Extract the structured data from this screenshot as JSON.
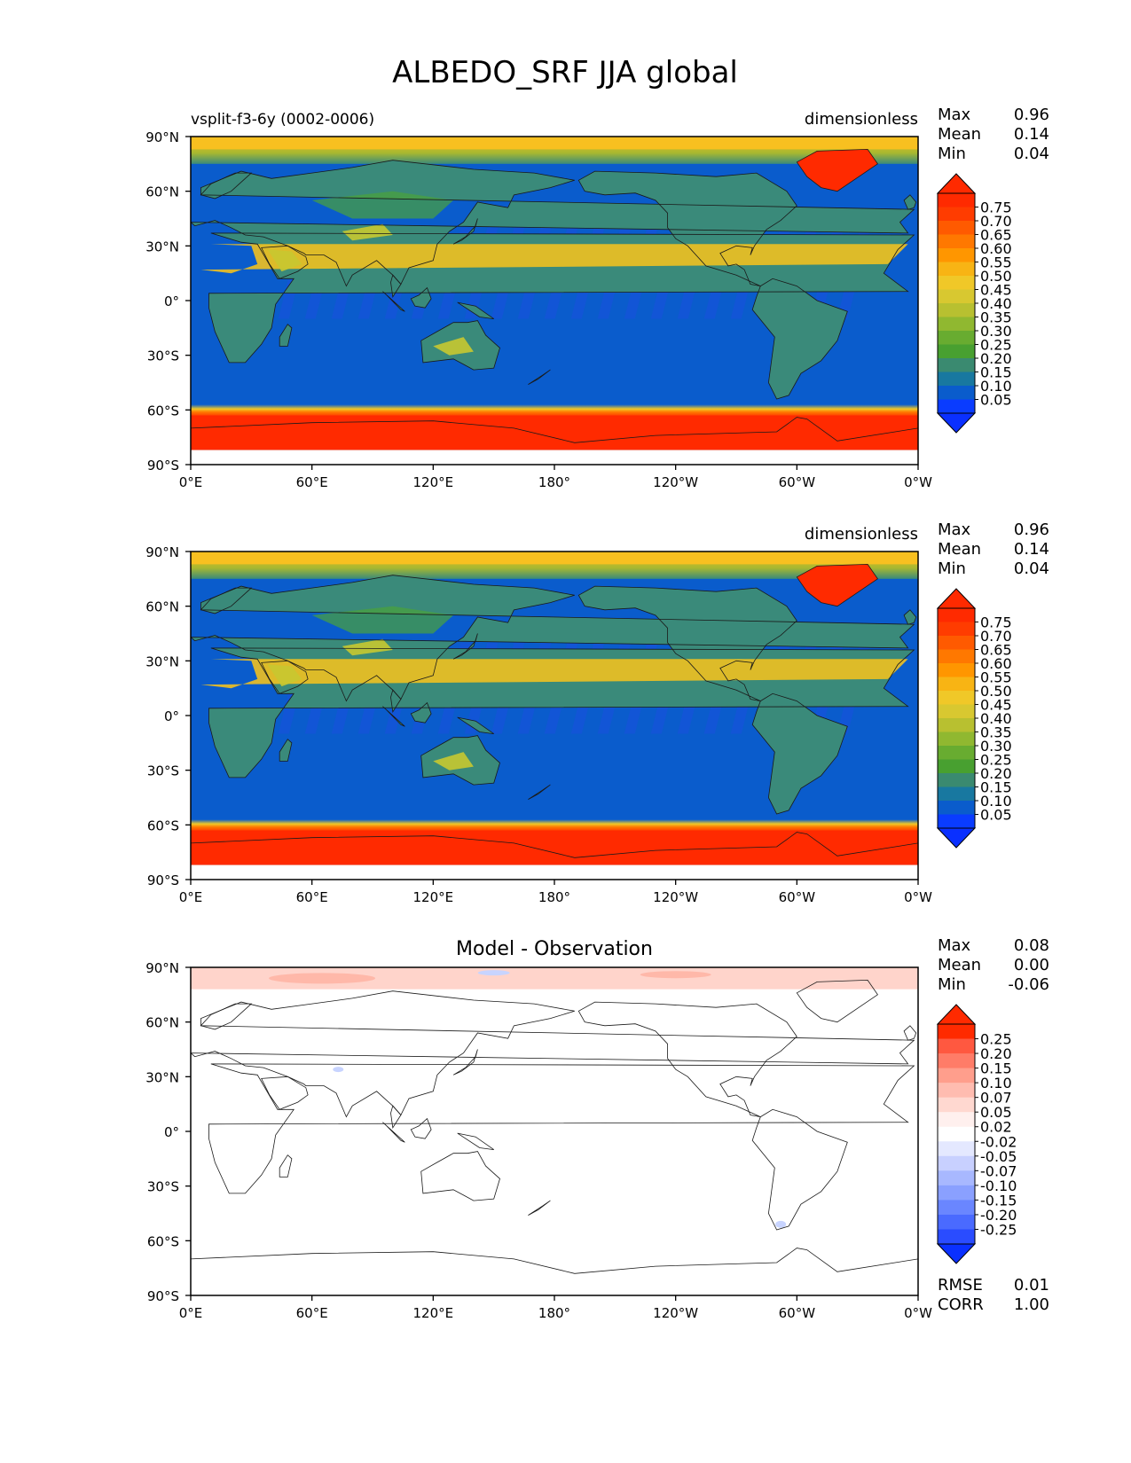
{
  "title": "ALBEDO_SRF JJA global",
  "lat_ticks": [
    "90°N",
    "60°N",
    "30°N",
    "0°",
    "30°S",
    "60°S",
    "90°S"
  ],
  "lon_ticks": [
    "0°E",
    "60°E",
    "120°E",
    "180°",
    "120°W",
    "60°W",
    "0°W"
  ],
  "colors": {
    "ocean": "#0a5ccc",
    "land_low": "#3a8a7a",
    "land_mid": "#4aa23a",
    "desert": "#c8c830",
    "desert_bright": "#f0c020",
    "arctic": "#f8c020",
    "ice": "#ff2a00",
    "diff_pos": "#ffb0a0",
    "diff_neg": "#c8d4ff"
  },
  "panels": [
    {
      "id": "test",
      "left_title": "vsplit-f3-6y (0002-0006)",
      "center_title": "",
      "right_title": "dimensionless",
      "stats": [
        {
          "label": "Max",
          "value": "0.96"
        },
        {
          "label": "Mean",
          "value": "0.14"
        },
        {
          "label": "Min",
          "value": "0.04"
        }
      ],
      "colorbar": {
        "labels": [
          "0.75",
          "0.70",
          "0.65",
          "0.60",
          "0.55",
          "0.50",
          "0.45",
          "0.40",
          "0.35",
          "0.30",
          "0.25",
          "0.20",
          "0.15",
          "0.10",
          "0.05"
        ],
        "colors": [
          "#ff2a00",
          "#ff3c00",
          "#ff5a00",
          "#ff7800",
          "#ff9600",
          "#f8b414",
          "#f0c828",
          "#d8c830",
          "#b8c030",
          "#90b830",
          "#68ac30",
          "#48a030",
          "#3a8a70",
          "#1878a0",
          "#0a5ccc",
          "#0a3cff"
        ],
        "top_color": "#ff2a00",
        "bottom_color": "#0a30ff"
      },
      "footer_stats": []
    },
    {
      "id": "reference",
      "left_title": "",
      "center_title": "",
      "right_title": "dimensionless",
      "stats": [
        {
          "label": "Max",
          "value": "0.96"
        },
        {
          "label": "Mean",
          "value": "0.14"
        },
        {
          "label": "Min",
          "value": "0.04"
        }
      ],
      "colorbar": {
        "labels": [
          "0.75",
          "0.70",
          "0.65",
          "0.60",
          "0.55",
          "0.50",
          "0.45",
          "0.40",
          "0.35",
          "0.30",
          "0.25",
          "0.20",
          "0.15",
          "0.10",
          "0.05"
        ],
        "colors": [
          "#ff2a00",
          "#ff3c00",
          "#ff5a00",
          "#ff7800",
          "#ff9600",
          "#f8b414",
          "#f0c828",
          "#d8c830",
          "#b8c030",
          "#90b830",
          "#68ac30",
          "#48a030",
          "#3a8a70",
          "#1878a0",
          "#0a5ccc",
          "#0a3cff"
        ],
        "top_color": "#ff2a00",
        "bottom_color": "#0a30ff"
      },
      "footer_stats": []
    },
    {
      "id": "difference",
      "left_title": "",
      "center_title": "Model - Observation",
      "right_title": "",
      "stats": [
        {
          "label": "Max",
          "value": "0.08"
        },
        {
          "label": "Mean",
          "value": "0.00"
        },
        {
          "label": "Min",
          "value": "-0.06"
        }
      ],
      "colorbar": {
        "labels": [
          "0.25",
          "0.20",
          "0.15",
          "0.10",
          "0.07",
          "0.05",
          "0.02",
          "-0.02",
          "-0.05",
          "-0.07",
          "-0.10",
          "-0.15",
          "-0.20",
          "-0.25"
        ],
        "colors": [
          "#ff2a00",
          "#ff5840",
          "#ff7c68",
          "#ff9e8c",
          "#ffbcb0",
          "#ffd8d0",
          "#fff0ee",
          "#ffffff",
          "#e4e8ff",
          "#c8d0ff",
          "#a8b8ff",
          "#8aa0ff",
          "#6a86ff",
          "#4a6aff",
          "#2a4cff"
        ],
        "top_color": "#ff2a00",
        "bottom_color": "#0a30ff"
      },
      "footer_stats": [
        {
          "label": "RMSE",
          "value": "0.01"
        },
        {
          "label": "CORR",
          "value": "1.00"
        }
      ]
    }
  ]
}
